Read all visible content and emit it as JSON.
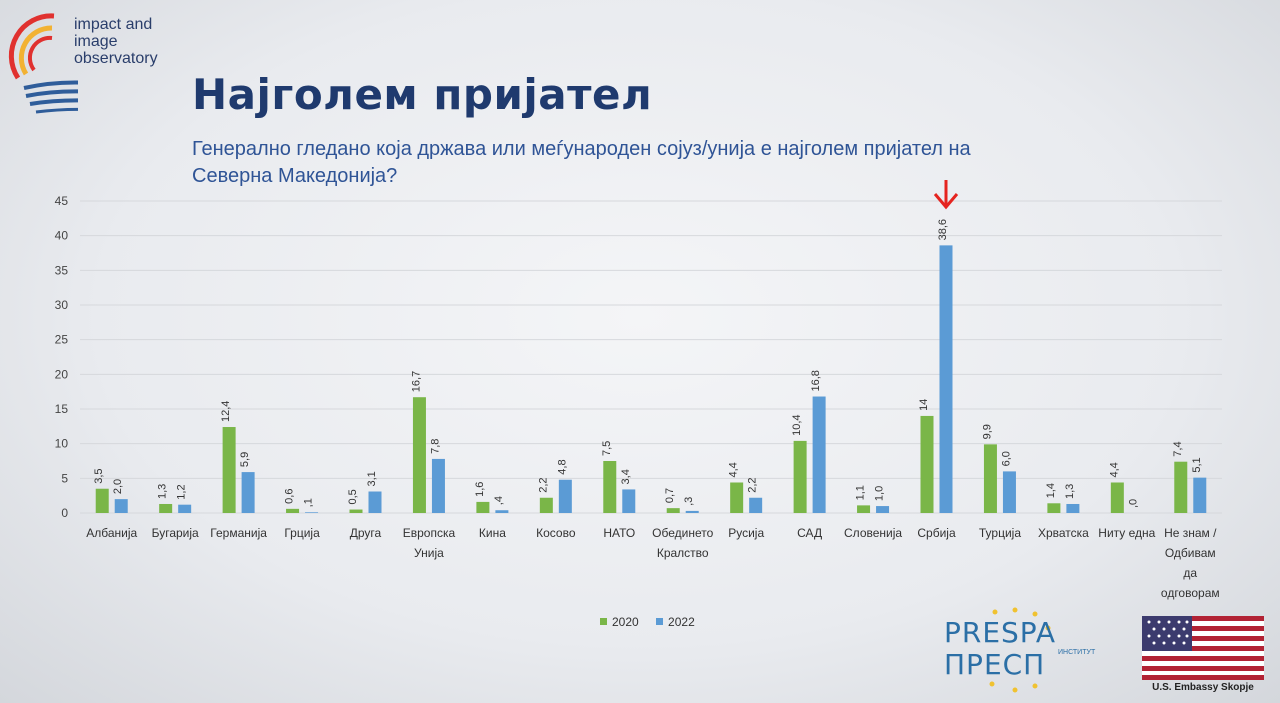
{
  "logo": {
    "line1": "impact and",
    "line2": "image",
    "line3": "observatory"
  },
  "title": "Најголем пријател",
  "subtitle": "Генерално гледано која држава или меѓународен сојуз/унија е најголем пријател на Северна Македонија?",
  "chart_data": {
    "type": "bar",
    "categories": [
      [
        "Албанија"
      ],
      [
        "Бугарија"
      ],
      [
        "Германија"
      ],
      [
        "Грција"
      ],
      [
        "Друга"
      ],
      [
        "Европска",
        "Унија"
      ],
      [
        "Кина"
      ],
      [
        "Косово"
      ],
      [
        "НАТО"
      ],
      [
        "Обединето",
        "Кралство"
      ],
      [
        "Русија"
      ],
      [
        "САД"
      ],
      [
        "Словенија"
      ],
      [
        "Србија"
      ],
      [
        "Турција"
      ],
      [
        "Хрватска"
      ],
      [
        "Ниту една"
      ],
      [
        "Не знам /",
        "Одбивам",
        "да",
        "одговорам"
      ]
    ],
    "series": [
      {
        "name": "2020",
        "color": "#7ab648",
        "values": [
          3.5,
          1.3,
          12.4,
          0.6,
          0.5,
          16.7,
          1.6,
          2.2,
          7.5,
          0.7,
          4.4,
          10.4,
          1.1,
          14,
          9.9,
          1.4,
          4.4,
          7.4
        ],
        "labels": [
          "3,5",
          "1,3",
          "12,4",
          "0,6",
          "0,5",
          "16,7",
          "1,6",
          "2,2",
          "7,5",
          "0,7",
          "4,4",
          "10,4",
          "1,1",
          "14",
          "9,9",
          "1,4",
          "4,4",
          "7,4"
        ]
      },
      {
        "name": "2022",
        "color": "#5b9bd5",
        "values": [
          2.0,
          1.2,
          5.9,
          0.1,
          3.1,
          7.8,
          0.4,
          4.8,
          3.4,
          0.3,
          2.2,
          16.8,
          1.0,
          38.6,
          6.0,
          1.3,
          0,
          5.1
        ],
        "labels": [
          "2,0",
          "1,2",
          "5,9",
          ",1",
          "3,1",
          "7,8",
          ",4",
          "4,8",
          "3,4",
          ",3",
          "2,2",
          "16,8",
          "1,0",
          "38,6",
          "6,0",
          "1,3",
          ",0",
          "5,1"
        ]
      }
    ],
    "y_ticks": [
      0,
      5,
      10,
      15,
      20,
      25,
      30,
      35,
      40,
      45
    ],
    "ylim": [
      0,
      45
    ],
    "grid": true,
    "legend_position": "bottom",
    "highlight_arrow_category": "Србија"
  },
  "prespa": {
    "line1": "PRESPA",
    "line2": "ПРЕСП",
    "suffix": "ИНСТИТУТ"
  },
  "embassy": {
    "label": "U.S. Embassy Skopje"
  }
}
